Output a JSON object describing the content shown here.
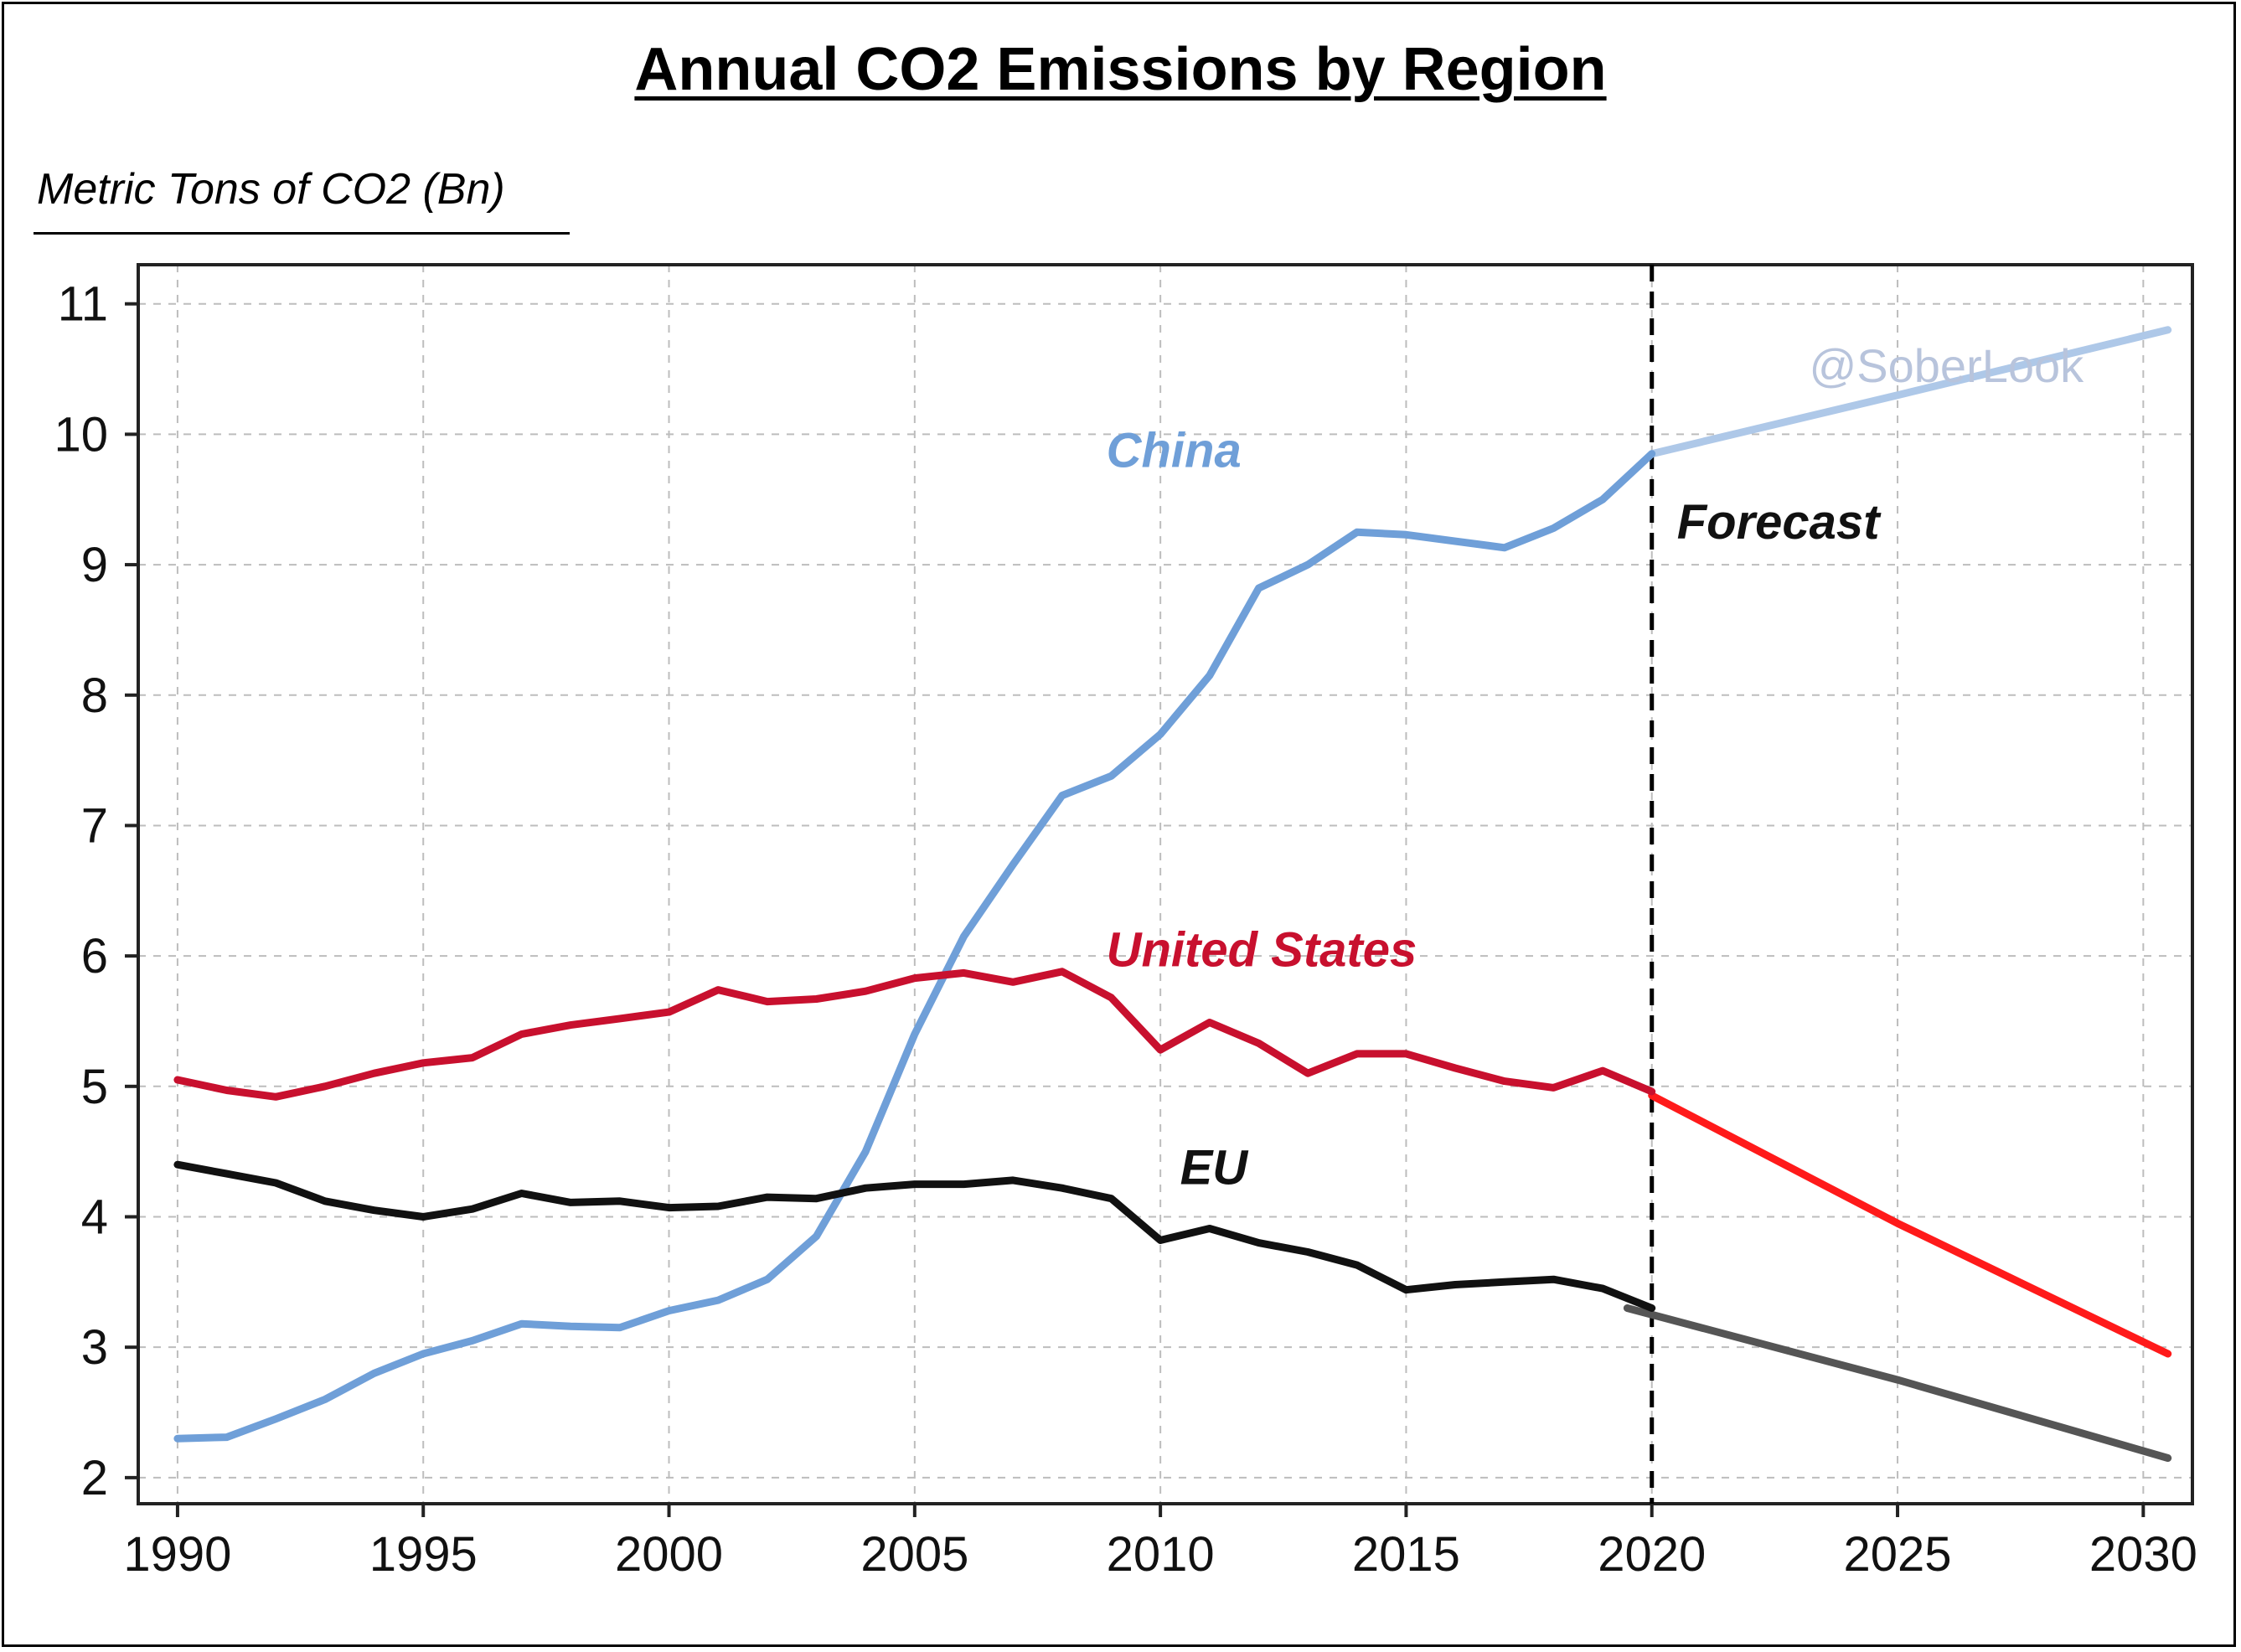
{
  "chart_data": {
    "type": "line",
    "title": "Annual CO2 Emissions by Region",
    "ylabel": "Metric Tons of CO2 (Bn)",
    "xlim": [
      1989.2,
      2031
    ],
    "ylim": [
      1.8,
      11.3
    ],
    "x_ticks": [
      1990,
      1995,
      2000,
      2005,
      2010,
      2015,
      2020,
      2025,
      2030
    ],
    "y_ticks": [
      2,
      3,
      4,
      5,
      6,
      7,
      8,
      9,
      10,
      11
    ],
    "grid": true,
    "forecast_start": 2020,
    "forecast_label": "Forecast",
    "watermark": "@SoberLook",
    "series": [
      {
        "name": "China",
        "color": "#6f9fd8",
        "forecast_color": "#aec8e8",
        "x": [
          1990,
          1991,
          1992,
          1993,
          1994,
          1995,
          1996,
          1997,
          1998,
          1999,
          2000,
          2001,
          2002,
          2003,
          2004,
          2005,
          2006,
          2007,
          2008,
          2009,
          2010,
          2011,
          2012,
          2013,
          2014,
          2015,
          2016,
          2017,
          2018,
          2019,
          2020
        ],
        "y": [
          2.3,
          2.31,
          2.45,
          2.6,
          2.8,
          2.95,
          3.05,
          3.18,
          3.16,
          3.15,
          3.28,
          3.36,
          3.52,
          3.85,
          4.5,
          5.4,
          6.15,
          6.7,
          7.23,
          7.38,
          7.7,
          8.15,
          8.82,
          9.0,
          9.25,
          9.23,
          9.18,
          9.13,
          9.28,
          9.5,
          9.85
        ],
        "forecast_x": [
          2020,
          2025,
          2030.5
        ],
        "forecast_y": [
          9.85,
          10.3,
          10.8
        ]
      },
      {
        "name": "United States",
        "color": "#c8102e",
        "forecast_color": "#ff1a1a",
        "x": [
          1990,
          1991,
          1992,
          1993,
          1994,
          1995,
          1996,
          1997,
          1998,
          1999,
          2000,
          2001,
          2002,
          2003,
          2004,
          2005,
          2006,
          2007,
          2008,
          2009,
          2010,
          2011,
          2012,
          2013,
          2014,
          2015,
          2016,
          2017,
          2018,
          2019,
          2020
        ],
        "y": [
          5.05,
          4.97,
          4.92,
          5.0,
          5.1,
          5.18,
          5.22,
          5.4,
          5.47,
          5.52,
          5.57,
          5.74,
          5.65,
          5.67,
          5.73,
          5.83,
          5.87,
          5.8,
          5.88,
          5.68,
          5.28,
          5.49,
          5.33,
          5.1,
          5.25,
          5.25,
          5.14,
          5.04,
          4.99,
          5.12,
          4.96
        ],
        "forecast_x": [
          2020,
          2025,
          2030.5
        ],
        "forecast_y": [
          4.93,
          3.95,
          2.95
        ]
      },
      {
        "name": "EU",
        "color": "#111111",
        "forecast_color": "#555555",
        "x": [
          1990,
          1991,
          1992,
          1993,
          1994,
          1995,
          1996,
          1997,
          1998,
          1999,
          2000,
          2001,
          2002,
          2003,
          2004,
          2005,
          2006,
          2007,
          2008,
          2009,
          2010,
          2011,
          2012,
          2013,
          2014,
          2015,
          2016,
          2017,
          2018,
          2019,
          2020
        ],
        "y": [
          4.4,
          4.33,
          4.26,
          4.12,
          4.05,
          4.0,
          4.06,
          4.18,
          4.11,
          4.12,
          4.07,
          4.08,
          4.15,
          4.14,
          4.22,
          4.25,
          4.25,
          4.28,
          4.22,
          4.14,
          3.82,
          3.91,
          3.8,
          3.73,
          3.63,
          3.44,
          3.48,
          3.5,
          3.52,
          3.45,
          3.3
        ],
        "forecast_x": [
          2019.5,
          2025,
          2030.5
        ],
        "forecast_y": [
          3.3,
          2.75,
          2.15
        ]
      }
    ],
    "annotations": [
      {
        "text": "China",
        "series": "China",
        "x": 2008.9,
        "y": 9.75
      },
      {
        "text": "United States",
        "series": "United States",
        "x": 2008.9,
        "y": 5.92
      },
      {
        "text": "EU",
        "series": "EU",
        "x": 2010.4,
        "y": 4.25
      }
    ]
  }
}
